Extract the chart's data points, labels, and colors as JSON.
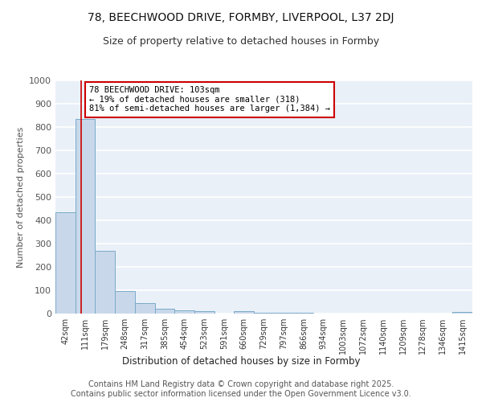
{
  "title_line1": "78, BEECHWOOD DRIVE, FORMBY, LIVERPOOL, L37 2DJ",
  "title_line2": "Size of property relative to detached houses in Formby",
  "xlabel": "Distribution of detached houses by size in Formby",
  "ylabel": "Number of detached properties",
  "bar_color": "#c8d8ea",
  "bar_edge_color": "#7aaac8",
  "bin_labels": [
    "42sqm",
    "111sqm",
    "179sqm",
    "248sqm",
    "317sqm",
    "385sqm",
    "454sqm",
    "523sqm",
    "591sqm",
    "660sqm",
    "729sqm",
    "797sqm",
    "866sqm",
    "934sqm",
    "1003sqm",
    "1072sqm",
    "1140sqm",
    "1209sqm",
    "1278sqm",
    "1346sqm",
    "1415sqm"
  ],
  "bar_heights": [
    435,
    835,
    270,
    95,
    45,
    20,
    15,
    10,
    0,
    10,
    5,
    5,
    5,
    0,
    0,
    0,
    0,
    0,
    0,
    0,
    8
  ],
  "ylim": [
    0,
    1000
  ],
  "yticks": [
    0,
    100,
    200,
    300,
    400,
    500,
    600,
    700,
    800,
    900,
    1000
  ],
  "property_line_x": 0.8,
  "annotation_text": "78 BEECHWOOD DRIVE: 103sqm\n← 19% of detached houses are smaller (318)\n81% of semi-detached houses are larger (1,384) →",
  "annotation_box_color": "#ffffff",
  "annotation_box_edge": "#cc0000",
  "vertical_line_color": "#cc0000",
  "background_color": "#eaf0f8",
  "grid_color": "#ffffff",
  "footer_text": "Contains HM Land Registry data © Crown copyright and database right 2025.\nContains public sector information licensed under the Open Government Licence v3.0.",
  "title_fontsize": 10,
  "subtitle_fontsize": 9,
  "annotation_fontsize": 7.5,
  "footer_fontsize": 7,
  "ylabel_fontsize": 8,
  "xlabel_fontsize": 8.5
}
